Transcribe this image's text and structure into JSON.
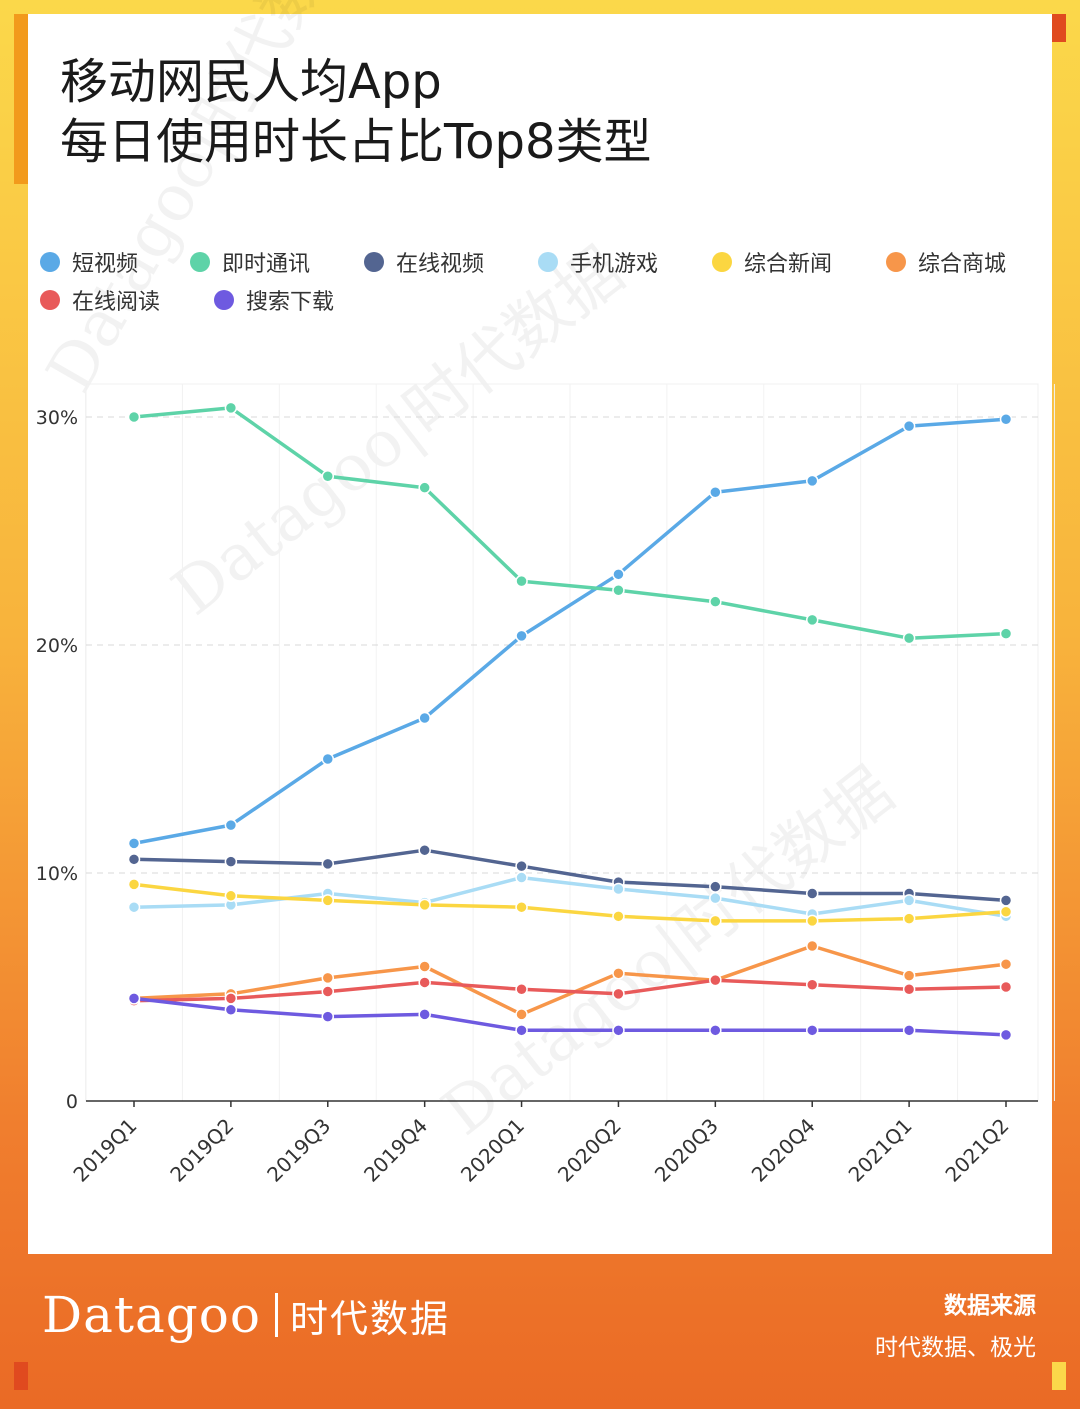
{
  "title_lines": [
    "移动网民人均App",
    "每日使用时长占比Top8类型"
  ],
  "watermark": "Datagoo|时代数据",
  "brand": {
    "en": "Datagoo",
    "cn": "时代数据"
  },
  "source": {
    "label": "数据来源",
    "text": "时代数据、极光"
  },
  "chart_data": {
    "type": "line",
    "title": "移动网民人均App每日使用时长占比Top8类型",
    "categories": [
      "2019Q1",
      "2019Q2",
      "2019Q3",
      "2019Q4",
      "2020Q1",
      "2020Q2",
      "2020Q3",
      "2020Q4",
      "2021Q1",
      "2021Q2"
    ],
    "ylim": [
      0,
      30
    ],
    "yticks": [
      0,
      10,
      20,
      30
    ],
    "ytick_labels": [
      "0",
      "10%",
      "20%",
      "30%"
    ],
    "grid": true,
    "legend_position": "top-left",
    "series": [
      {
        "name": "短视频",
        "color": "#5aa9e6",
        "values": [
          11.3,
          12.1,
          15.0,
          16.8,
          20.4,
          23.1,
          26.7,
          27.2,
          29.6,
          29.9
        ]
      },
      {
        "name": "即时通讯",
        "color": "#5ed3a8",
        "values": [
          30.0,
          30.4,
          27.4,
          26.9,
          22.8,
          22.4,
          21.9,
          21.1,
          20.3,
          20.5
        ]
      },
      {
        "name": "在线视频",
        "color": "#536591",
        "values": [
          10.6,
          10.5,
          10.4,
          11.0,
          10.3,
          9.6,
          9.4,
          9.1,
          9.1,
          8.8
        ]
      },
      {
        "name": "手机游戏",
        "color": "#a9dcf5",
        "values": [
          8.5,
          8.6,
          9.1,
          8.7,
          9.8,
          9.3,
          8.9,
          8.2,
          8.8,
          8.1
        ]
      },
      {
        "name": "综合新闻",
        "color": "#fbd641",
        "values": [
          9.5,
          9.0,
          8.8,
          8.6,
          8.5,
          8.1,
          7.9,
          7.9,
          8.0,
          8.3
        ]
      },
      {
        "name": "综合商城",
        "color": "#f7964a",
        "values": [
          4.5,
          4.7,
          5.4,
          5.9,
          3.8,
          5.6,
          5.3,
          6.8,
          5.5,
          6.0
        ]
      },
      {
        "name": "在线阅读",
        "color": "#e85a5a",
        "values": [
          4.4,
          4.5,
          4.8,
          5.2,
          4.9,
          4.7,
          5.3,
          5.1,
          4.9,
          5.0
        ]
      },
      {
        "name": "搜索下载",
        "color": "#6e5ae0",
        "values": [
          4.5,
          4.0,
          3.7,
          3.8,
          3.1,
          3.1,
          3.1,
          3.1,
          3.1,
          2.9
        ]
      }
    ]
  }
}
